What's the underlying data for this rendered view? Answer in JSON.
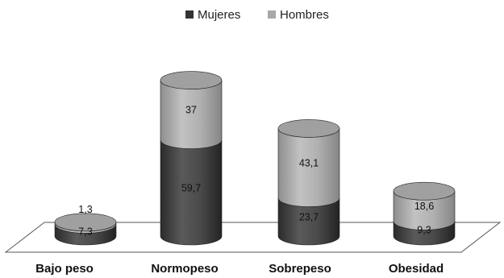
{
  "chart_data": {
    "type": "bar",
    "stacked": true,
    "style": "3d-cylinder",
    "title": "",
    "xlabel": "",
    "ylabel": "",
    "ylim": [
      0,
      100
    ],
    "legend_position": "top-center",
    "grid": false,
    "categories": [
      "Bajo peso",
      "Normopeso",
      "Sobrepeso",
      "Obesidad"
    ],
    "series": [
      {
        "name": "Mujeres",
        "color": "#4a4a4a",
        "values": [
          7.3,
          59.7,
          23.7,
          9.3
        ],
        "labels": [
          "7,3",
          "59,7",
          "23,7",
          "9,3"
        ]
      },
      {
        "name": "Hombres",
        "color": "#a8a8a8",
        "values": [
          1.3,
          37,
          43.1,
          18.6
        ],
        "labels": [
          "1,3",
          "37",
          "43,1",
          "18,6"
        ]
      }
    ]
  }
}
